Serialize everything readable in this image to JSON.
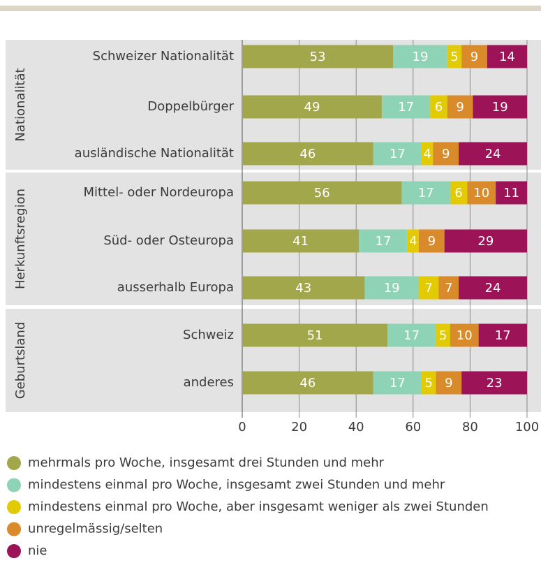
{
  "chart_data": {
    "type": "bar",
    "orientation": "horizontal",
    "stacked": true,
    "groups": [
      {
        "label": "Nationalität",
        "categories": [
          "Schweizer Nationalität",
          "Doppelbürger",
          "ausländische Nationalität"
        ]
      },
      {
        "label": "Herkunftsregion",
        "categories": [
          "Mittel- oder Nordeuropa",
          "Süd- oder Osteuropa",
          "ausserhalb Europa"
        ]
      },
      {
        "label": "Geburtsland",
        "categories": [
          "Schweiz",
          "anderes"
        ]
      }
    ],
    "series": [
      {
        "name": "mehrmals pro Woche, insgesamt drei Stunden und mehr",
        "color": "#a3a74b",
        "values": [
          53,
          49,
          46,
          56,
          41,
          43,
          51,
          46
        ]
      },
      {
        "name": "mindestens einmal pro Woche, insgesamt zwei Stunden und mehr",
        "color": "#8fd3b6",
        "values": [
          19,
          17,
          17,
          17,
          17,
          19,
          17,
          17
        ]
      },
      {
        "name": "mindestens einmal pro Woche, aber insgesamt weniger als zwei Stunden",
        "color": "#e2cb05",
        "values": [
          5,
          6,
          4,
          6,
          4,
          7,
          5,
          5
        ]
      },
      {
        "name": "unregelmässig/selten",
        "color": "#d98a2b",
        "values": [
          9,
          9,
          9,
          10,
          9,
          7,
          10,
          9
        ]
      },
      {
        "name": "nie",
        "color": "#9c1457",
        "values": [
          14,
          19,
          24,
          11,
          29,
          24,
          17,
          23
        ]
      }
    ],
    "xlim": [
      0,
      100
    ],
    "xticks": [
      0,
      20,
      40,
      60,
      80,
      100
    ],
    "grid": true
  }
}
